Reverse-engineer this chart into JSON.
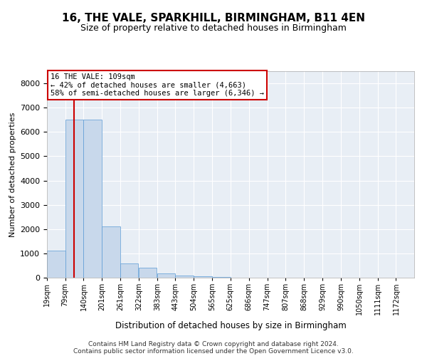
{
  "title": "16, THE VALE, SPARKHILL, BIRMINGHAM, B11 4EN",
  "subtitle": "Size of property relative to detached houses in Birmingham",
  "xlabel": "Distribution of detached houses by size in Birmingham",
  "ylabel": "Number of detached properties",
  "bar_color": "#c8d8eb",
  "bar_edge_color": "#5b9bd5",
  "background_color": "#e8eef5",
  "annotation_box_color": "#ffffff",
  "annotation_border_color": "#cc0000",
  "vline_color": "#cc0000",
  "footer_line1": "Contains HM Land Registry data © Crown copyright and database right 2024.",
  "footer_line2": "Contains public sector information licensed under the Open Government Licence v3.0.",
  "property_size": 109,
  "annotation_title": "16 THE VALE: 109sqm",
  "annotation_line2": "← 42% of detached houses are smaller (4,663)",
  "annotation_line3": "58% of semi-detached houses are larger (6,346) →",
  "bin_edges": [
    19,
    79,
    140,
    201,
    261,
    322,
    383,
    443,
    504,
    565,
    625,
    686,
    747,
    807,
    868,
    929,
    990,
    1050,
    1111,
    1172,
    1232
  ],
  "bar_heights": [
    1100,
    6500,
    6500,
    2100,
    600,
    400,
    175,
    100,
    50,
    25,
    10,
    5,
    3,
    2,
    1,
    1,
    0,
    0,
    0,
    0
  ],
  "ylim": [
    0,
    8500
  ],
  "yticks": [
    0,
    1000,
    2000,
    3000,
    4000,
    5000,
    6000,
    7000,
    8000
  ]
}
